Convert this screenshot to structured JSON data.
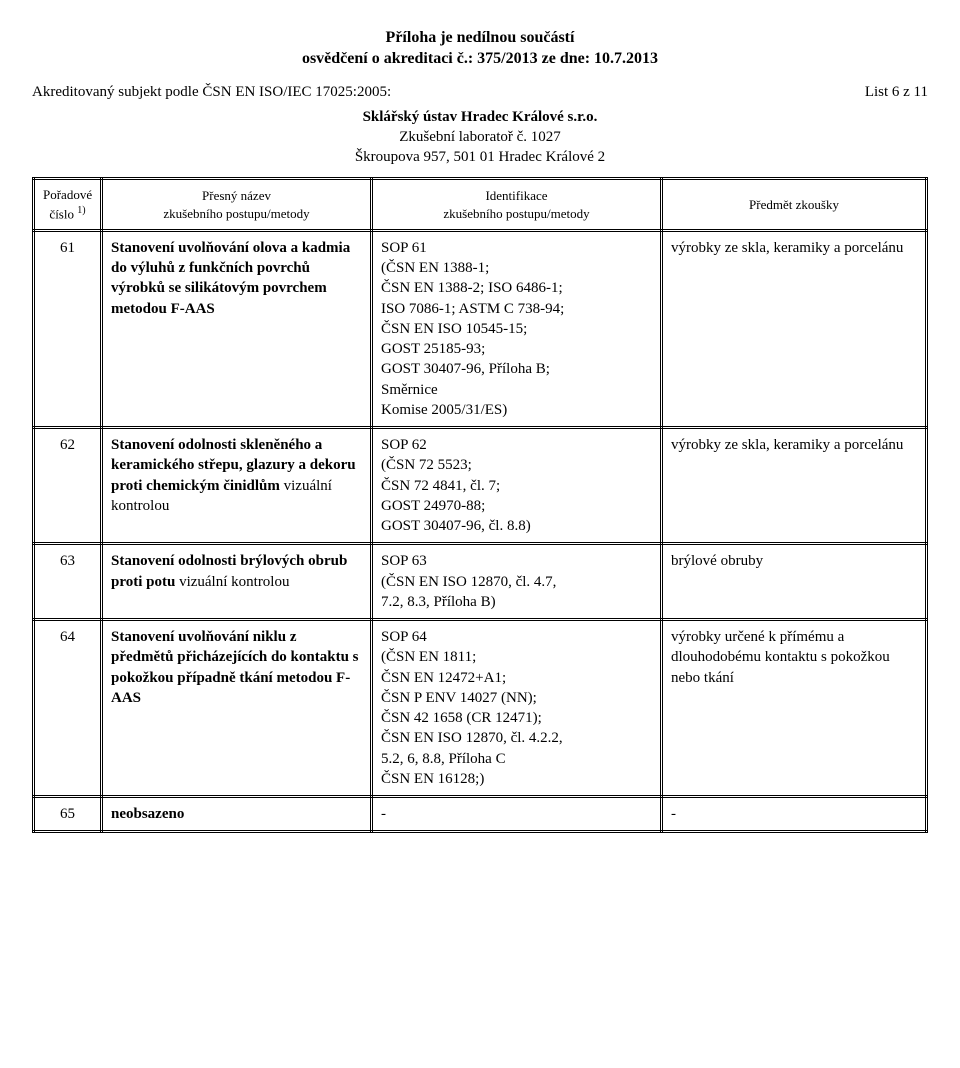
{
  "header": {
    "line1": "Příloha je nedílnou součástí",
    "line2": "osvědčení o akreditaci č.: 375/2013 ze dne: 10.7.2013",
    "accred_line": "Akreditovaný subjekt podle ČSN EN ISO/IEC 17025:2005:",
    "page_label": "List 6 z 11",
    "ustav": "Sklářský ústav Hradec Králové s.r.o.",
    "lab": "Zkušební laboratoř č. 1027",
    "addr": "Škroupova 957, 501 01  Hradec Králové 2"
  },
  "table": {
    "head": {
      "c1a": "Pořadové",
      "c1b": "číslo",
      "c1sup": "1)",
      "c2a": "Přesný název",
      "c2b": "zkušebního postupu/metody",
      "c3a": "Identifikace",
      "c3b": "zkušebního postupu/metody",
      "c4": "Předmět zkoušky"
    },
    "rows": [
      {
        "num": "61",
        "name_bold": "Stanovení uvolňování olova a kadmia do výluhů z funkčních povrchů výrobků se silikátovým povrchem metodou F-AAS",
        "name_rest": "",
        "ident": "SOP 61\n(ČSN EN 1388-1;\nČSN EN 1388-2; ISO 6486-1;\nISO 7086-1; ASTM C 738-94;\nČSN EN ISO 10545-15;\nGOST 25185-93;\nGOST 30407-96, Příloha B;\nSměrnice\nKomise 2005/31/ES)",
        "subj": "výrobky ze skla, keramiky a porcelánu"
      },
      {
        "num": "62",
        "name_bold": "Stanovení odolnosti skleněného a keramického střepu, glazury a dekoru proti chemickým činidlům ",
        "name_rest": "vizuální kontrolou",
        "ident": "SOP 62\n(ČSN 72 5523;\nČSN 72 4841, čl. 7;\nGOST 24970-88;\nGOST 30407-96, čl. 8.8)",
        "subj": "výrobky ze skla, keramiky a porcelánu"
      },
      {
        "num": "63",
        "name_bold": "Stanovení odolnosti brýlových obrub proti potu ",
        "name_rest": "vizuální kontrolou",
        "ident": "SOP 63\n(ČSN EN ISO 12870, čl. 4.7,\n7.2, 8.3, Příloha B)",
        "subj": "brýlové obruby"
      },
      {
        "num": "64",
        "name_bold": "Stanovení uvolňování niklu z předmětů přicházejících do kontaktu s pokožkou případně tkání metodou F-AAS",
        "name_rest": "",
        "ident": "SOP 64\n(ČSN EN 1811;\n ČSN EN 12472+A1;\n ČSN P ENV 14027 (NN);\nČSN 42 1658 (CR 12471);\nČSN EN ISO 12870, čl. 4.2.2,\n5.2, 6, 8.8, Příloha C\nČSN EN 16128;)",
        "subj": "výrobky určené k přímému a dlouhodobému kontaktu s pokožkou nebo tkání"
      },
      {
        "num": "65",
        "name_bold": "neobsazeno",
        "name_rest": "",
        "ident": "-",
        "subj": "-"
      }
    ]
  }
}
